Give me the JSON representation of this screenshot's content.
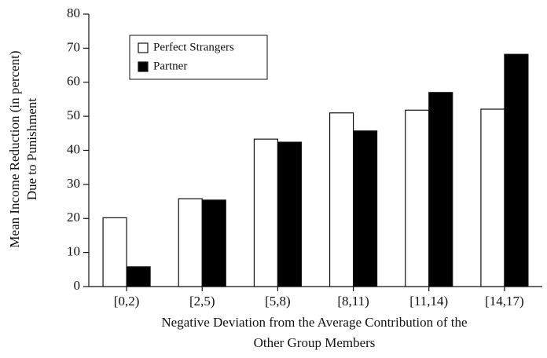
{
  "chart_data": {
    "type": "bar",
    "ylabel": [
      "Mean Income Reduction (in percent)",
      "Due to Punishment"
    ],
    "xlabel": [
      "Negative Deviation from the Average Contribution of the",
      "Other Group Members"
    ],
    "categories": [
      "[0,2)",
      "[2,5)",
      "[5,8)",
      "[8,11)",
      "[11,14)",
      "[14,17)"
    ],
    "series": [
      {
        "name": "Perfect Strangers",
        "color": "#ffffff",
        "values": [
          20.2,
          25.8,
          43.3,
          51,
          51.8,
          52.1
        ]
      },
      {
        "name": "Partner",
        "color": "#000000",
        "values": [
          5.8,
          25.4,
          42.4,
          45.7,
          57,
          68.2
        ]
      }
    ],
    "ylim": [
      0,
      80
    ],
    "yticks": [
      0,
      10,
      20,
      30,
      40,
      50,
      60,
      70,
      80
    ],
    "legend": "upper left",
    "grid": false
  }
}
